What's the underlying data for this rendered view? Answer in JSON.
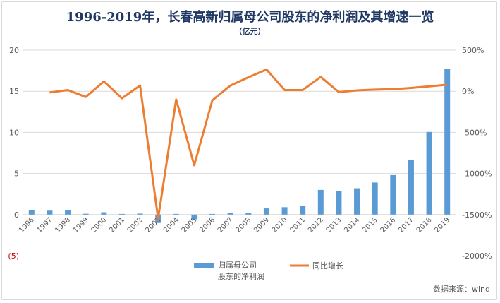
{
  "title": "1996-2019年，长春高新归属母公司股东的净利润及其增速一览",
  "subtitle": "（亿元）",
  "source": "数据来源：wind",
  "legend": {
    "bar_label_line1": "归属母公司",
    "bar_label_line2": "股东的净利润",
    "line_label": "同比增长"
  },
  "colors": {
    "bar": "#5b9bd5",
    "line": "#ed7d31",
    "negative_tick": "#c00000",
    "axis_text": "#595959"
  },
  "chart_data": {
    "type": "bar",
    "categories": [
      "1996",
      "1997",
      "1998",
      "1999",
      "2000",
      "2001",
      "2002",
      "2003",
      "2004",
      "2005",
      "2006",
      "2007",
      "2008",
      "2009",
      "2010",
      "2011",
      "2012",
      "2013",
      "2014",
      "2015",
      "2016",
      "2017",
      "2018",
      "2019"
    ],
    "series": [
      {
        "name": "归属母公司股东的净利润",
        "type": "bar",
        "axis": "left",
        "values": [
          0.55,
          0.48,
          0.52,
          0.1,
          0.28,
          0.08,
          0.12,
          -1.02,
          0.08,
          -0.58,
          0.08,
          0.2,
          0.2,
          0.75,
          0.9,
          1.1,
          3.0,
          2.85,
          3.2,
          3.9,
          4.8,
          6.6,
          10.05,
          17.7
        ]
      },
      {
        "name": "同比增长",
        "type": "line",
        "axis": "right",
        "values": [
          null,
          -15,
          15,
          -70,
          120,
          -85,
          70,
          -1550,
          -100,
          -900,
          -110,
          70,
          170,
          265,
          15,
          15,
          175,
          -10,
          10,
          20,
          25,
          40,
          60,
          80
        ]
      }
    ],
    "y_left": {
      "ticks": [
        -5,
        0,
        5,
        10,
        15,
        20
      ],
      "tick_labels": [
        "(5)",
        "0",
        "5",
        "10",
        "15",
        "20"
      ],
      "ylim": [
        -5,
        20
      ]
    },
    "y_right": {
      "ticks": [
        -2000,
        -1500,
        -1000,
        -500,
        0,
        500
      ],
      "tick_labels": [
        "-2000%",
        "-1500%",
        "-1000%",
        "-500%",
        "0%",
        "500%"
      ],
      "ylim": [
        -2000,
        500
      ]
    },
    "grid": true,
    "legend_position": "bottom"
  }
}
